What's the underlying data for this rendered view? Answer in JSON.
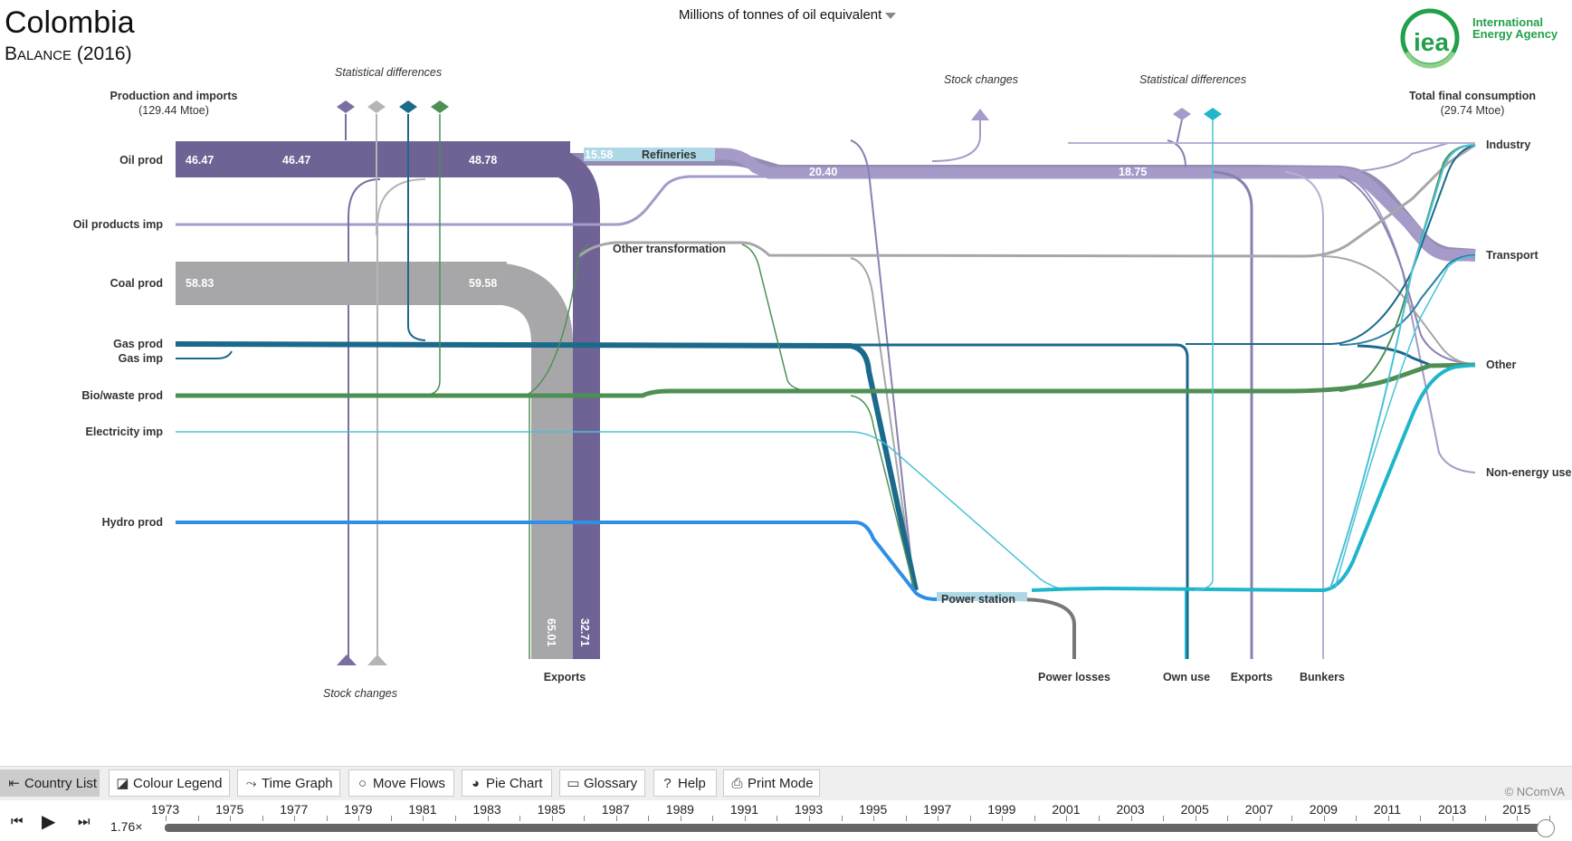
{
  "header": {
    "country": "Colombia",
    "balance": "Balance (2016)",
    "unit": "Millions of tonnes of oil equivalent",
    "logo_text_1": "International",
    "logo_text_2": "Energy Agency",
    "logo_mark": "iea"
  },
  "diagram": {
    "left_title": "Production and imports",
    "left_total": "(129.44 Mtoe)",
    "right_title": "Total final consumption",
    "right_total": "(29.74 Mtoe)",
    "stat_diff_left": "Statistical differences",
    "stock_changes_bottom": "Stock changes",
    "stock_changes_top": "Stock  changes",
    "stat_diff_right": "Statistical differences",
    "sources": {
      "oil_prod": "Oil prod",
      "oil_products_imp": "Oil products imp",
      "coal_prod": "Coal prod",
      "gas_prod": "Gas prod",
      "gas_imp": "Gas imp",
      "bio_waste_prod": "Bio/waste prod",
      "electricity_imp": "Electricity imp",
      "hydro_prod": "Hydro prod"
    },
    "nodes": {
      "refineries": "Refineries",
      "other_transformation": "Other transformation",
      "power_station": "Power station"
    },
    "sinks": {
      "exports_left": "Exports",
      "power_losses": "Power losses",
      "own_use": "Own use",
      "exports_right": "Exports",
      "bunkers": "Bunkers"
    },
    "consumers": {
      "industry": "Industry",
      "transport": "Transport",
      "other": "Other",
      "non_energy": "Non-energy use"
    },
    "values": {
      "oil_a": "46.47",
      "oil_b": "46.47",
      "oil_c": "48.78",
      "refineries_in": "15.58",
      "refined_a": "20.40",
      "refined_b": "18.75",
      "coal_a": "58.83",
      "coal_b": "59.58",
      "exports_coal": "65.01",
      "exports_oil": "32.71"
    },
    "colors": {
      "oil": "#7b6fa0",
      "oil_light": "#a59ac8",
      "coal": "#a7a7a9",
      "gas": "#1b6a8c",
      "bio": "#4f8f55",
      "electricity": "#49c2d6",
      "hydro": "#2f8fe6"
    }
  },
  "toolbar": {
    "country_list": "Country List",
    "colour_legend": "Colour Legend",
    "time_graph": "Time Graph",
    "move_flows": "Move Flows",
    "pie_chart": "Pie Chart",
    "glossary": "Glossary",
    "help": "Help",
    "print_mode": "Print Mode",
    "credit": "© NComVA"
  },
  "timeline": {
    "speed": "1.76×",
    "years": [
      "1973",
      "1975",
      "1977",
      "1979",
      "1981",
      "1983",
      "1985",
      "1987",
      "1989",
      "1991",
      "1993",
      "1995",
      "1997",
      "1999",
      "2001",
      "2003",
      "2005",
      "2007",
      "2009",
      "2011",
      "2013",
      "2015"
    ],
    "current_year": "2016"
  }
}
